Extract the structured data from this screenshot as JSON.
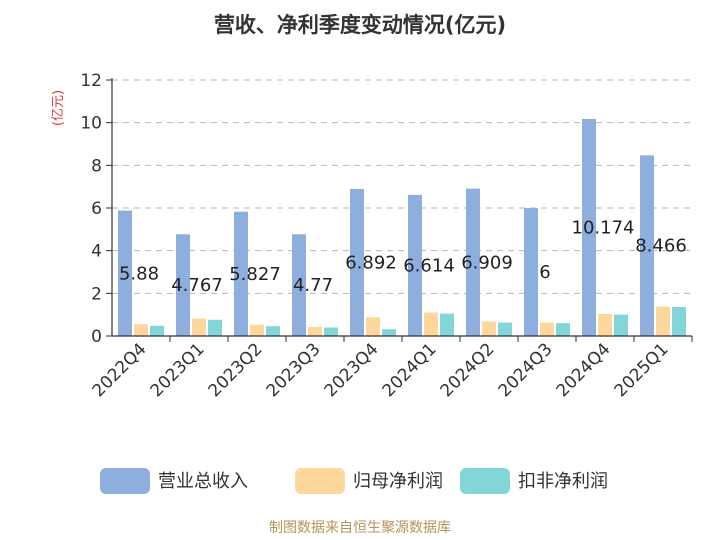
{
  "chart_data": {
    "type": "bar",
    "title": "营收、净利季度变动情况(亿元)",
    "y_unit": "(亿元)",
    "categories": [
      "2022Q4",
      "2023Q1",
      "2023Q2",
      "2023Q3",
      "2023Q4",
      "2024Q1",
      "2024Q2",
      "2024Q3",
      "2024Q4",
      "2025Q1"
    ],
    "series": [
      {
        "name": "营业总收入",
        "color": "#8eaedd",
        "values": [
          5.88,
          4.767,
          5.827,
          4.77,
          6.892,
          6.614,
          6.909,
          6,
          10.174,
          8.466
        ],
        "labels": [
          "5.88",
          "4.767",
          "5.827",
          "4.77",
          "6.892",
          "6.614",
          "6.909",
          "6",
          "10.174",
          "8.466"
        ]
      },
      {
        "name": "归母净利润",
        "color": "#fdd79b",
        "values": [
          0.55,
          0.82,
          0.53,
          0.42,
          0.88,
          1.1,
          0.68,
          0.63,
          1.03,
          1.38
        ]
      },
      {
        "name": "扣非净利润",
        "color": "#83d6d8",
        "values": [
          0.48,
          0.76,
          0.46,
          0.4,
          0.32,
          1.05,
          0.63,
          0.6,
          1.0,
          1.36
        ]
      }
    ],
    "y_ticks": [
      "0",
      "2",
      "4",
      "6",
      "8",
      "10",
      "12"
    ],
    "ylim": [
      0,
      12
    ],
    "grid": true,
    "legend_position": "bottom",
    "footer": "制图数据来自恒生聚源数据库"
  }
}
